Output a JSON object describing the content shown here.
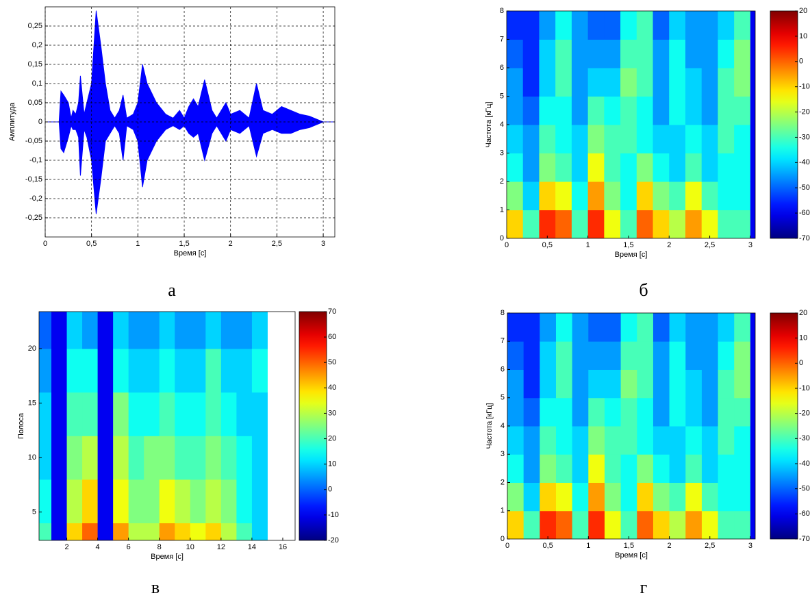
{
  "chart_data": [
    {
      "type": "area",
      "caption": "а",
      "xlabel": "Время  [с]",
      "ylabel": "Амплитуда",
      "grid": true,
      "x": [
        0,
        0.15,
        0.17,
        0.2,
        0.25,
        0.28,
        0.3,
        0.33,
        0.36,
        0.38,
        0.42,
        0.45,
        0.5,
        0.55,
        0.6,
        0.65,
        0.7,
        0.75,
        0.8,
        0.84,
        0.88,
        0.95,
        1.0,
        1.05,
        1.1,
        1.2,
        1.3,
        1.38,
        1.45,
        1.5,
        1.55,
        1.6,
        1.65,
        1.72,
        1.8,
        1.85,
        1.95,
        2.0,
        2.1,
        2.2,
        2.28,
        2.35,
        2.45,
        2.55,
        2.65,
        2.75,
        2.85,
        2.95,
        3.0,
        3.125
      ],
      "series": [
        {
          "color": "#0000ff",
          "values": [
            0,
            0,
            0.08,
            0.07,
            0.05,
            0.01,
            0.03,
            0.02,
            0.05,
            0.12,
            0.02,
            0.05,
            0.1,
            0.29,
            0.2,
            0.1,
            0.03,
            0.01,
            0.03,
            0.07,
            0.01,
            0.02,
            0.05,
            0.15,
            0.1,
            0.05,
            0.02,
            0.01,
            0.03,
            0.01,
            0.04,
            0.06,
            0.04,
            0.11,
            0.03,
            0.01,
            0.05,
            0.02,
            0.03,
            0.01,
            0.1,
            0.03,
            0.02,
            0.04,
            0.03,
            0.02,
            0.015,
            0.005,
            0,
            0
          ]
        },
        {
          "color": "#0000ff",
          "values": [
            0,
            0,
            -0.07,
            -0.08,
            -0.04,
            -0.01,
            -0.02,
            -0.02,
            -0.04,
            -0.14,
            -0.02,
            -0.04,
            -0.1,
            -0.24,
            -0.15,
            -0.05,
            -0.03,
            -0.01,
            -0.03,
            -0.1,
            -0.01,
            -0.02,
            -0.05,
            -0.17,
            -0.1,
            -0.05,
            -0.02,
            -0.01,
            -0.02,
            -0.01,
            -0.03,
            -0.04,
            -0.03,
            -0.1,
            -0.03,
            -0.01,
            -0.05,
            -0.02,
            -0.03,
            -0.01,
            -0.09,
            -0.03,
            -0.02,
            -0.03,
            -0.03,
            -0.02,
            -0.015,
            -0.005,
            0,
            0
          ]
        }
      ],
      "xlim": [
        0,
        3.125
      ],
      "ylim": [
        -0.3,
        0.3
      ],
      "xticks": [
        0,
        {
          "value": 0.5,
          "label": "0,5"
        },
        1,
        {
          "value": 1.5,
          "label": "1,5"
        },
        2,
        {
          "value": 2.5,
          "label": "2,5"
        },
        3
      ],
      "yticks": [
        {
          "value": -0.25,
          "label": "-0,25"
        },
        {
          "value": -0.2,
          "label": "-0,2"
        },
        {
          "value": -0.15,
          "label": "-0,15"
        },
        {
          "value": -0.1,
          "label": "-0,1"
        },
        {
          "value": -0.05,
          "label": "-0,05"
        },
        0,
        {
          "value": 0.05,
          "label": "0,05"
        },
        {
          "value": 0.1,
          "label": "0,1"
        },
        {
          "value": 0.15,
          "label": "0,15"
        },
        {
          "value": 0.2,
          "label": "0,2"
        },
        {
          "value": 0.25,
          "label": "0,25"
        }
      ]
    },
    {
      "type": "heatmap",
      "caption": "б",
      "xlabel": "Время  [с]",
      "ylabel": "Частота  [кГц]",
      "colormap": "jet",
      "xbins": [
        0,
        0.2,
        0.4,
        0.6,
        0.8,
        1.0,
        1.2,
        1.4,
        1.6,
        1.8,
        2.0,
        2.2,
        2.4,
        2.6,
        2.8,
        3.0,
        3.2
      ],
      "ybins": [
        0,
        1,
        2,
        3,
        4,
        5,
        6,
        7,
        8
      ],
      "z": [
        [
          -10,
          -25,
          -35,
          -40,
          -45,
          -45,
          -50,
          -55
        ],
        [
          -30,
          -40,
          -45,
          -45,
          -50,
          -55,
          -55,
          -55
        ],
        [
          5,
          -10,
          -25,
          -30,
          -35,
          -40,
          -40,
          -45
        ],
        [
          0,
          -15,
          -30,
          -35,
          -35,
          -30,
          -30,
          -35
        ],
        [
          -30,
          -35,
          -40,
          -40,
          -45,
          -45,
          -45,
          -45
        ],
        [
          5,
          -5,
          -15,
          -25,
          -30,
          -40,
          -45,
          -50
        ],
        [
          -15,
          -25,
          -30,
          -30,
          -35,
          -40,
          -45,
          -50
        ],
        [
          -30,
          -35,
          -35,
          -30,
          -30,
          -25,
          -30,
          -35
        ],
        [
          0,
          -10,
          -25,
          -35,
          -35,
          -30,
          -30,
          -30
        ],
        [
          -10,
          -25,
          -35,
          -40,
          -45,
          -45,
          -45,
          -50
        ],
        [
          -20,
          -30,
          -40,
          -40,
          -35,
          -35,
          -35,
          -40
        ],
        [
          -5,
          -15,
          -30,
          -35,
          -40,
          -40,
          -45,
          -45
        ],
        [
          -15,
          -30,
          -40,
          -40,
          -45,
          -45,
          -45,
          -45
        ],
        [
          -30,
          -35,
          -35,
          -30,
          -30,
          -30,
          -35,
          -40
        ],
        [
          -30,
          -35,
          -35,
          -35,
          -30,
          -25,
          -25,
          -30
        ],
        [
          -60,
          -60,
          -60,
          -60,
          -60,
          -60,
          -60,
          -60
        ]
      ],
      "xlim": [
        0,
        3.06
      ],
      "ylim": [
        0,
        8
      ],
      "clim": [
        -70,
        20
      ],
      "xticks": [
        0,
        {
          "value": 0.5,
          "label": "0,5"
        },
        1,
        {
          "value": 1.5,
          "label": "1,5"
        },
        2,
        {
          "value": 2.5,
          "label": "2,5"
        },
        3
      ],
      "yticks": [
        0,
        1,
        2,
        3,
        4,
        5,
        6,
        7,
        8
      ],
      "cticks": [
        -70,
        -60,
        -50,
        -40,
        -30,
        -20,
        -10,
        0,
        10,
        20
      ]
    },
    {
      "type": "heatmap",
      "caption": "в",
      "xlabel": "Время  [с]",
      "ylabel": "Полоса",
      "colormap": "jet",
      "xbins": [
        0,
        1,
        2,
        3,
        4,
        5,
        6,
        7,
        8,
        9,
        10,
        11,
        12,
        13,
        14,
        15,
        16
      ],
      "ybins": [
        0,
        4,
        8,
        12,
        16,
        20,
        24
      ],
      "z": [
        [
          20,
          15,
          10,
          10,
          5,
          0
        ],
        [
          -10,
          -10,
          -10,
          -10,
          -10,
          -10
        ],
        [
          40,
          30,
          25,
          20,
          15,
          10
        ],
        [
          50,
          40,
          30,
          20,
          15,
          5
        ],
        [
          -10,
          -10,
          -10,
          -10,
          -10,
          -10
        ],
        [
          45,
          35,
          30,
          25,
          15,
          10
        ],
        [
          30,
          25,
          20,
          15,
          10,
          5
        ],
        [
          30,
          25,
          25,
          15,
          10,
          5
        ],
        [
          45,
          35,
          25,
          20,
          15,
          10
        ],
        [
          40,
          30,
          20,
          15,
          10,
          5
        ],
        [
          35,
          25,
          20,
          15,
          10,
          5
        ],
        [
          40,
          30,
          25,
          20,
          20,
          10
        ],
        [
          30,
          25,
          20,
          15,
          10,
          5
        ],
        [
          20,
          15,
          15,
          10,
          10,
          5
        ],
        [
          10,
          10,
          10,
          10,
          15,
          10
        ],
        [
          null,
          null,
          null,
          null,
          null,
          null
        ]
      ],
      "xlim": [
        0.2,
        16.8
      ],
      "ylim": [
        2.4,
        23.4
      ],
      "clim": [
        -20,
        70
      ],
      "xticks": [
        2,
        4,
        6,
        8,
        10,
        12,
        14,
        16
      ],
      "yticks": [
        5,
        10,
        15,
        20
      ],
      "cticks": [
        -20,
        -10,
        0,
        10,
        20,
        30,
        40,
        50,
        60,
        70
      ]
    },
    {
      "type": "heatmap",
      "caption": "г",
      "xlabel": "Время  [с]",
      "ylabel": "Частота  [кГц]",
      "colormap": "jet",
      "xbins": [
        0,
        0.2,
        0.4,
        0.6,
        0.8,
        1.0,
        1.2,
        1.4,
        1.6,
        1.8,
        2.0,
        2.2,
        2.4,
        2.6,
        2.8,
        3.0,
        3.2
      ],
      "ybins": [
        0,
        1,
        2,
        3,
        4,
        5,
        6,
        7,
        8
      ],
      "z": [
        [
          -10,
          -25,
          -35,
          -40,
          -45,
          -45,
          -50,
          -55
        ],
        [
          -30,
          -40,
          -45,
          -45,
          -50,
          -55,
          -55,
          -55
        ],
        [
          5,
          -10,
          -25,
          -30,
          -35,
          -40,
          -40,
          -45
        ],
        [
          0,
          -15,
          -30,
          -35,
          -35,
          -30,
          -30,
          -35
        ],
        [
          -30,
          -35,
          -40,
          -40,
          -45,
          -45,
          -45,
          -45
        ],
        [
          5,
          -5,
          -15,
          -25,
          -30,
          -40,
          -45,
          -50
        ],
        [
          -15,
          -25,
          -30,
          -30,
          -35,
          -40,
          -45,
          -50
        ],
        [
          -30,
          -35,
          -35,
          -30,
          -30,
          -25,
          -30,
          -35
        ],
        [
          0,
          -10,
          -25,
          -35,
          -35,
          -30,
          -30,
          -30
        ],
        [
          -10,
          -25,
          -35,
          -40,
          -45,
          -45,
          -45,
          -50
        ],
        [
          -20,
          -30,
          -40,
          -40,
          -35,
          -35,
          -35,
          -40
        ],
        [
          -5,
          -15,
          -30,
          -35,
          -40,
          -40,
          -45,
          -45
        ],
        [
          -15,
          -30,
          -40,
          -40,
          -45,
          -45,
          -45,
          -45
        ],
        [
          -30,
          -35,
          -35,
          -30,
          -30,
          -30,
          -35,
          -40
        ],
        [
          -30,
          -35,
          -35,
          -35,
          -30,
          -25,
          -25,
          -30
        ],
        [
          -60,
          -60,
          -60,
          -60,
          -60,
          -60,
          -60,
          -60
        ]
      ],
      "xlim": [
        0,
        3.06
      ],
      "ylim": [
        0,
        8
      ],
      "clim": [
        -70,
        20
      ],
      "xticks": [
        0,
        {
          "value": 0.5,
          "label": "0,5"
        },
        1,
        {
          "value": 1.5,
          "label": "1,5"
        },
        2,
        {
          "value": 2.5,
          "label": "2,5"
        },
        3
      ],
      "yticks": [
        0,
        1,
        2,
        3,
        4,
        5,
        6,
        7,
        8
      ],
      "cticks": [
        -70,
        -60,
        -50,
        -40,
        -30,
        -20,
        -10,
        0,
        10,
        20
      ]
    }
  ]
}
